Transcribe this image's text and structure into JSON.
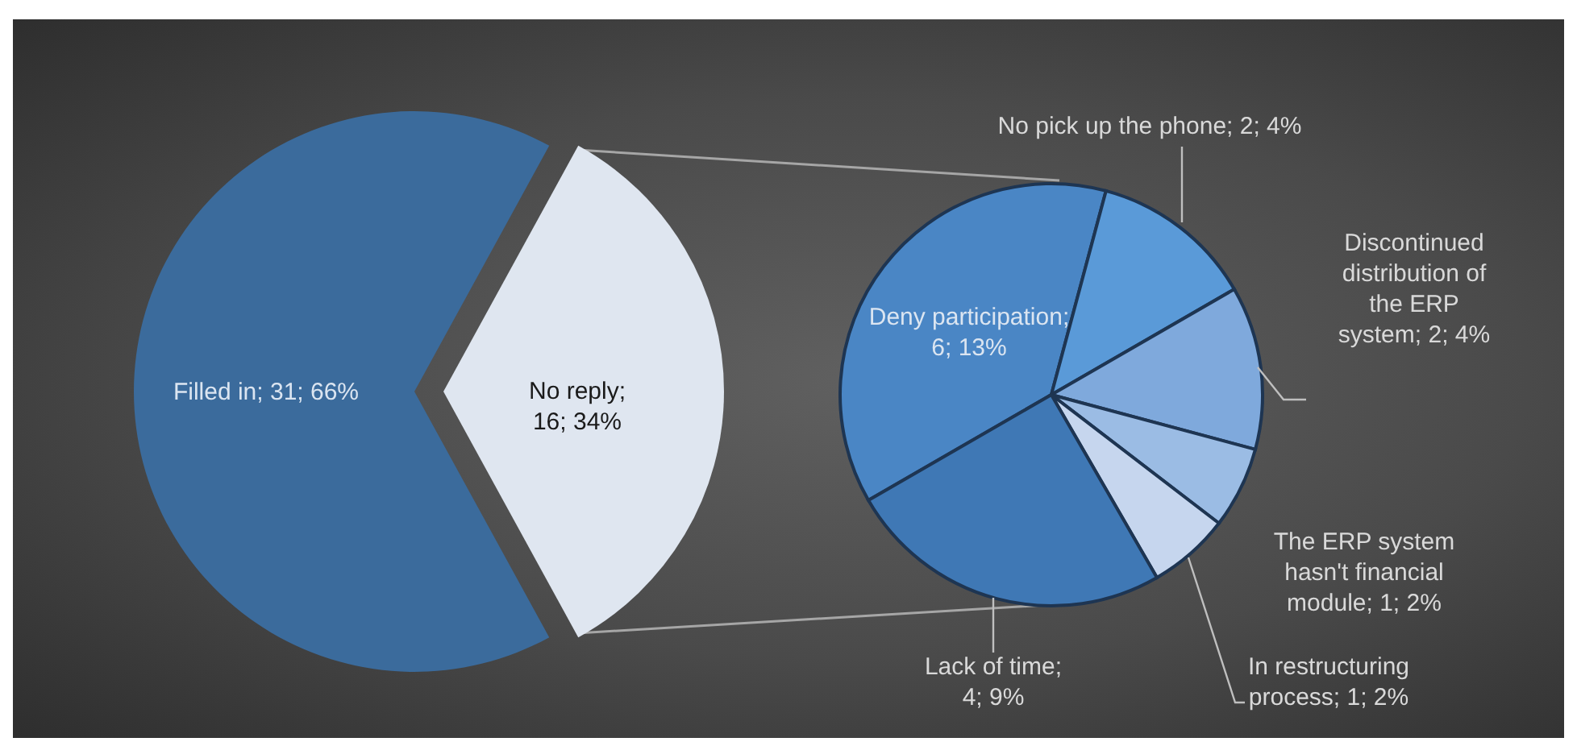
{
  "chart_data": [
    {
      "type": "pie",
      "categories": [
        "Filled in",
        "No reply"
      ],
      "values": [
        31,
        16
      ],
      "colors": [
        "#3b6b9c",
        "#dfe6f0"
      ],
      "value_labels": [
        "; 31; 66%",
        "; 16; 34%"
      ]
    },
    {
      "type": "pie",
      "categories": [
        "Deny participation",
        "No pick up the phone",
        "Discontinued distribution of the ERP system",
        "The ERP system hasn't financial module",
        "In restructuring process",
        "Lack of time"
      ],
      "values": [
        6,
        2,
        2,
        1,
        1,
        4
      ],
      "colors": [
        "#4a86c5",
        "#5a9ad8",
        "#7fa9dc",
        "#9bbce4",
        "#c6d6ee",
        "#3f78b5"
      ],
      "value_labels": [
        "; 6; 13%",
        "; 2; 4%",
        "; 2; 4%",
        "; 1; 2%",
        "; 1; 2%",
        "; 4; 9%"
      ]
    }
  ]
}
